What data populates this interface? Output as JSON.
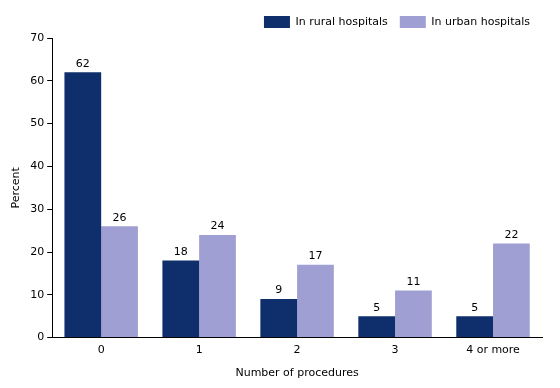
{
  "chart_data": {
    "type": "bar",
    "x_label": "Number of procedures",
    "y_label": "Percent",
    "categories": [
      "0",
      "1",
      "2",
      "3",
      "4 or more"
    ],
    "series": [
      {
        "name": "In rural hospitals",
        "color": "#0e2f6b",
        "values": [
          62,
          18,
          9,
          5,
          5
        ]
      },
      {
        "name": "In urban hospitals",
        "color": "#a09fd3",
        "values": [
          26,
          24,
          17,
          11,
          22
        ]
      }
    ],
    "ylim": [
      0,
      70
    ],
    "yticks": [
      0,
      10,
      20,
      30,
      40,
      50,
      60,
      70
    ],
    "grid": false,
    "legend": "top-right",
    "data_labels": true
  }
}
